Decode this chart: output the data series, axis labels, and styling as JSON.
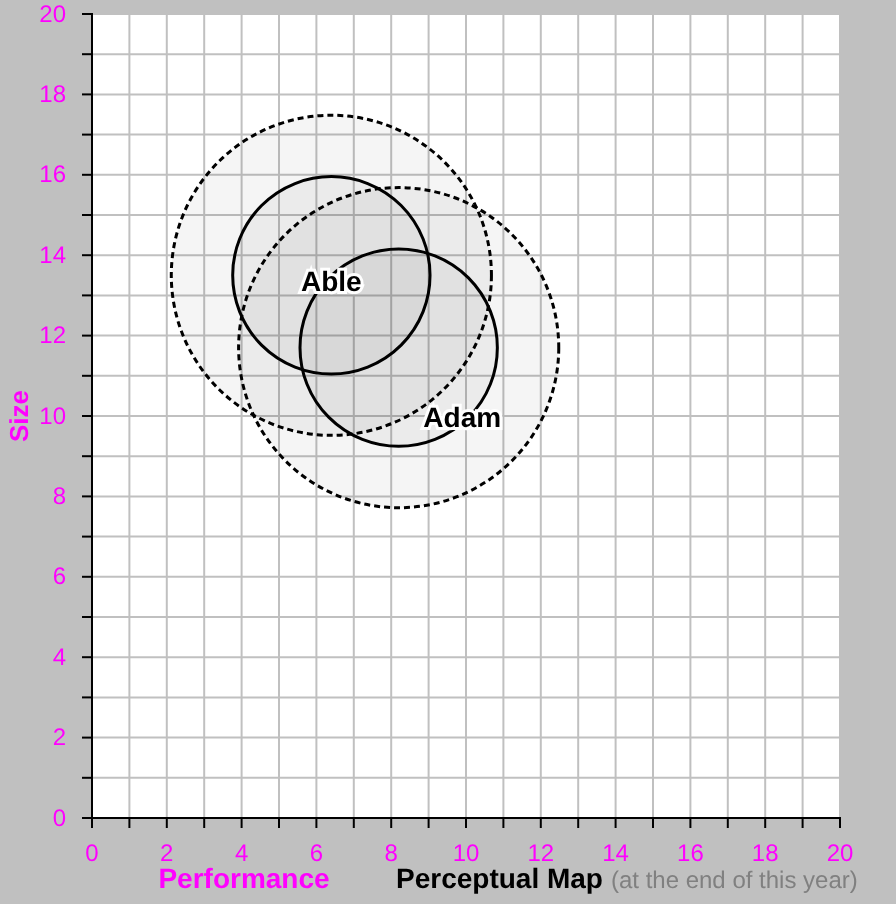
{
  "chart_data": {
    "type": "bubble",
    "title": "Perceptual Map",
    "subtitle": "(at the end of this year)",
    "xlabel": "Performance",
    "ylabel": "Size",
    "xlim": [
      0,
      20
    ],
    "ylim": [
      0,
      20
    ],
    "xticks": [
      0,
      {
        "value": 1,
        "label": null
      },
      2,
      {
        "value": 3,
        "label": null
      },
      4,
      {
        "value": 5,
        "label": null
      },
      6,
      {
        "value": 7,
        "label": null
      },
      8,
      {
        "value": 9,
        "label": null
      },
      10,
      {
        "value": 11,
        "label": null
      },
      12,
      {
        "value": 13,
        "label": null
      },
      14,
      {
        "value": 15,
        "label": null
      },
      16,
      {
        "value": 17,
        "label": null
      },
      18,
      {
        "value": 19,
        "label": null
      },
      20
    ],
    "yticks": [
      0,
      {
        "value": 1,
        "label": null
      },
      2,
      {
        "value": 3,
        "label": null
      },
      4,
      {
        "value": 5,
        "label": null
      },
      6,
      {
        "value": 7,
        "label": null
      },
      8,
      {
        "value": 9,
        "label": null
      },
      10,
      {
        "value": 11,
        "label": null
      },
      12,
      {
        "value": 13,
        "label": null
      },
      14,
      {
        "value": 15,
        "label": null
      },
      16,
      {
        "value": 17,
        "label": null
      },
      18,
      {
        "value": 19,
        "label": null
      },
      20
    ],
    "grid": true,
    "marker": "circle",
    "x": [
      6.4,
      8.2
    ],
    "series": [
      {
        "color": "#000000",
        "line_style": "dashed",
        "values": [
          13.5,
          11.7
        ],
        "sizes": [
          1,
          1
        ]
      },
      {
        "color": "#000000",
        "line_style": "solid",
        "values": [
          13.5,
          11.7
        ],
        "sizes": [
          0.38,
          0.38
        ]
      }
    ],
    "annotations": [
      {
        "text": "Able",
        "x": 6.4,
        "y": 13.3
      },
      {
        "text": "Adam",
        "x": 9.9,
        "y": 9.9
      }
    ]
  }
}
